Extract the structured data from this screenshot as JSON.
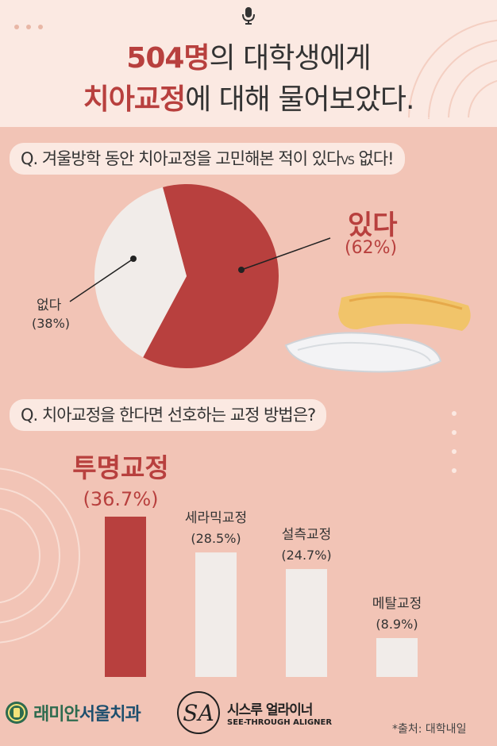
{
  "header": {
    "title_line1_highlight": "504명",
    "title_line1_rest": "의 대학생에게",
    "title_line2_highlight": "치아교정",
    "title_line2_rest": "에 대해 물어보았다.",
    "icon": "microphone-icon"
  },
  "question1": {
    "text_main": "Q. 겨울방학 동안 치아교정을 고민해본 적이 있다",
    "text_vs": "VS",
    "text_end": "없다!"
  },
  "question2": {
    "text": "Q. 치아교정을 한다면 선호하는 교정 방법은?"
  },
  "colors": {
    "accent": "#b8403e",
    "light": "#f1ece9",
    "background": "#f2c4b6",
    "header_bg": "#fbe9e2"
  },
  "chart_data": [
    {
      "type": "pie",
      "slices": [
        {
          "label": "있다",
          "value": 62,
          "value_text": "(62%)"
        },
        {
          "label": "없다",
          "value": 38,
          "value_text": "(38%)"
        }
      ]
    },
    {
      "type": "bar",
      "categories": [
        "투명교정",
        "세라믹교정",
        "설측교정",
        "메탈교정"
      ],
      "values": [
        36.7,
        28.5,
        24.7,
        8.9
      ],
      "value_texts": [
        "(36.7%)",
        "(28.5%)",
        "(24.7%)",
        "(8.9%)"
      ]
    }
  ],
  "footer": {
    "logo1_part1": "래미안",
    "logo1_part2": "서울치과",
    "logo2_ko": "시스루 얼라이너",
    "logo2_en": "SEE-THROUGH ALIGNER",
    "logo2_mark": "SA",
    "source": "*출처: 대학내일"
  }
}
